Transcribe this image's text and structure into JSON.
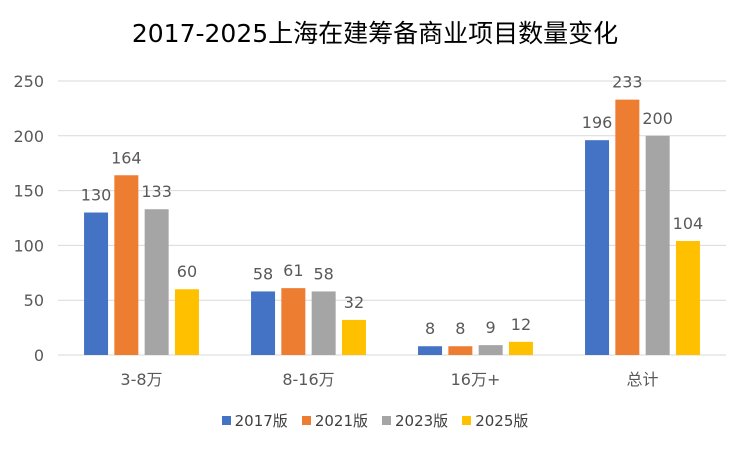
{
  "chart_data": {
    "type": "bar",
    "title": "2017-2025上海在建筹备商业项目数量变化",
    "categories": [
      "3-8万",
      "8-16万",
      "16万+",
      "总计"
    ],
    "series": [
      {
        "name": "2017版",
        "color": "#4472C4",
        "values": [
          130,
          58,
          8,
          196
        ]
      },
      {
        "name": "2021版",
        "color": "#ED7D31",
        "values": [
          164,
          61,
          8,
          233
        ]
      },
      {
        "name": "2023版",
        "color": "#A5A5A5",
        "values": [
          133,
          58,
          9,
          200
        ]
      },
      {
        "name": "2025版",
        "color": "#FFC000",
        "values": [
          60,
          32,
          12,
          104
        ]
      }
    ],
    "ylim": [
      0,
      250
    ],
    "yticks": [
      0,
      50,
      100,
      150,
      200,
      250
    ],
    "grid": true,
    "legend": "bottom",
    "xlabel": "",
    "ylabel": ""
  }
}
